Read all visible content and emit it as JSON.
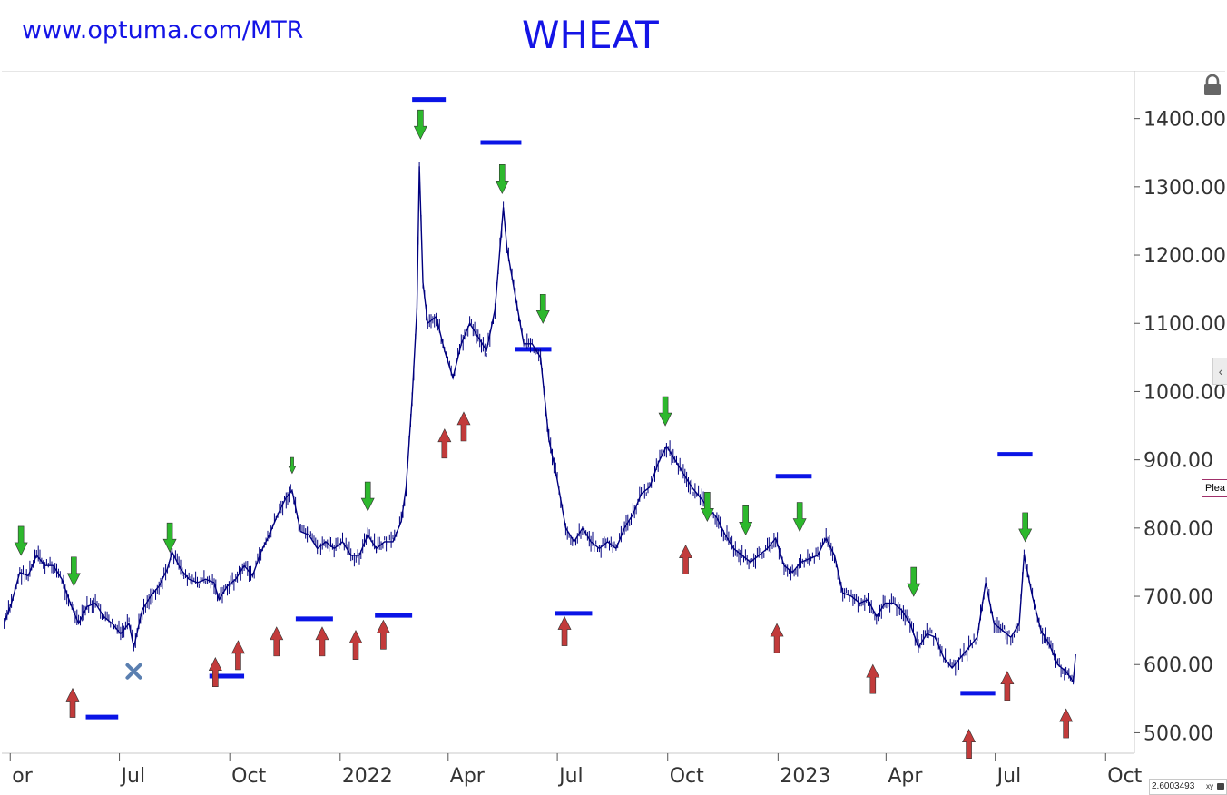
{
  "header": {
    "url": "www.optuma.com/MTR",
    "title": "WHEAT"
  },
  "chart_data": {
    "type": "line",
    "title": "WHEAT",
    "ylim": [
      470,
      1470
    ],
    "y_ticks": [
      "500.00",
      "600.00",
      "700.00",
      "800.00",
      "900.00",
      "1000.00",
      "1100.00",
      "1200.00",
      "1300.00",
      "1400.00"
    ],
    "x_ticks": [
      "or",
      "Jul",
      "Oct",
      "2022",
      "Apr",
      "Jul",
      "Oct",
      "2023",
      "Apr",
      "Jul",
      "Oct"
    ],
    "x_range": [
      "2021-03-25",
      "2023-10-25"
    ],
    "grid": false,
    "series": [
      {
        "color": "#00007f",
        "points": [
          [
            "2021-03-27",
            660
          ],
          [
            "2021-04-02",
            690
          ],
          [
            "2021-04-09",
            735
          ],
          [
            "2021-04-16",
            730
          ],
          [
            "2021-04-23",
            760
          ],
          [
            "2021-04-30",
            745
          ],
          [
            "2021-05-07",
            745
          ],
          [
            "2021-05-14",
            725
          ],
          [
            "2021-05-21",
            690
          ],
          [
            "2021-05-28",
            660
          ],
          [
            "2021-06-04",
            685
          ],
          [
            "2021-06-11",
            690
          ],
          [
            "2021-06-18",
            670
          ],
          [
            "2021-06-25",
            660
          ],
          [
            "2021-07-02",
            645
          ],
          [
            "2021-07-09",
            660
          ],
          [
            "2021-07-13",
            625
          ],
          [
            "2021-07-20",
            680
          ],
          [
            "2021-07-27",
            700
          ],
          [
            "2021-08-03",
            715
          ],
          [
            "2021-08-10",
            740
          ],
          [
            "2021-08-14",
            765
          ],
          [
            "2021-08-21",
            740
          ],
          [
            "2021-08-28",
            725
          ],
          [
            "2021-09-04",
            720
          ],
          [
            "2021-09-11",
            725
          ],
          [
            "2021-09-18",
            720
          ],
          [
            "2021-09-22",
            695
          ],
          [
            "2021-09-29",
            715
          ],
          [
            "2021-10-06",
            725
          ],
          [
            "2021-10-13",
            745
          ],
          [
            "2021-10-20",
            730
          ],
          [
            "2021-10-27",
            765
          ],
          [
            "2021-11-03",
            790
          ],
          [
            "2021-11-10",
            820
          ],
          [
            "2021-11-17",
            845
          ],
          [
            "2021-11-22",
            855
          ],
          [
            "2021-11-29",
            795
          ],
          [
            "2021-12-06",
            790
          ],
          [
            "2021-12-13",
            770
          ],
          [
            "2021-12-20",
            780
          ],
          [
            "2021-12-27",
            770
          ],
          [
            "2022-01-03",
            780
          ],
          [
            "2022-01-10",
            760
          ],
          [
            "2022-01-17",
            760
          ],
          [
            "2022-01-24",
            790
          ],
          [
            "2022-01-31",
            770
          ],
          [
            "2022-02-07",
            780
          ],
          [
            "2022-02-14",
            780
          ],
          [
            "2022-02-21",
            810
          ],
          [
            "2022-02-25",
            860
          ],
          [
            "2022-03-02",
            990
          ],
          [
            "2022-03-06",
            1120
          ],
          [
            "2022-03-08",
            1330
          ],
          [
            "2022-03-11",
            1160
          ],
          [
            "2022-03-15",
            1100
          ],
          [
            "2022-03-22",
            1110
          ],
          [
            "2022-03-29",
            1060
          ],
          [
            "2022-04-05",
            1020
          ],
          [
            "2022-04-12",
            1070
          ],
          [
            "2022-04-19",
            1100
          ],
          [
            "2022-04-26",
            1080
          ],
          [
            "2022-05-03",
            1060
          ],
          [
            "2022-05-10",
            1120
          ],
          [
            "2022-05-17",
            1270
          ],
          [
            "2022-05-20",
            1210
          ],
          [
            "2022-05-27",
            1140
          ],
          [
            "2022-06-03",
            1070
          ],
          [
            "2022-06-10",
            1070
          ],
          [
            "2022-06-17",
            1050
          ],
          [
            "2022-06-24",
            930
          ],
          [
            "2022-07-01",
            870
          ],
          [
            "2022-07-08",
            800
          ],
          [
            "2022-07-15",
            780
          ],
          [
            "2022-07-22",
            800
          ],
          [
            "2022-07-29",
            780
          ],
          [
            "2022-08-05",
            770
          ],
          [
            "2022-08-12",
            780
          ],
          [
            "2022-08-19",
            770
          ],
          [
            "2022-08-26",
            800
          ],
          [
            "2022-09-02",
            820
          ],
          [
            "2022-09-09",
            850
          ],
          [
            "2022-09-16",
            860
          ],
          [
            "2022-09-23",
            895
          ],
          [
            "2022-09-30",
            920
          ],
          [
            "2022-10-07",
            900
          ],
          [
            "2022-10-14",
            880
          ],
          [
            "2022-10-21",
            860
          ],
          [
            "2022-10-28",
            845
          ],
          [
            "2022-11-04",
            830
          ],
          [
            "2022-11-11",
            815
          ],
          [
            "2022-11-18",
            790
          ],
          [
            "2022-11-25",
            770
          ],
          [
            "2022-12-02",
            760
          ],
          [
            "2022-12-09",
            750
          ],
          [
            "2022-12-16",
            760
          ],
          [
            "2022-12-23",
            770
          ],
          [
            "2022-12-30",
            785
          ],
          [
            "2023-01-06",
            745
          ],
          [
            "2023-01-13",
            735
          ],
          [
            "2023-01-20",
            750
          ],
          [
            "2023-01-27",
            755
          ],
          [
            "2023-02-03",
            760
          ],
          [
            "2023-02-10",
            785
          ],
          [
            "2023-02-17",
            760
          ],
          [
            "2023-02-24",
            705
          ],
          [
            "2023-03-03",
            700
          ],
          [
            "2023-03-10",
            690
          ],
          [
            "2023-03-17",
            695
          ],
          [
            "2023-03-24",
            670
          ],
          [
            "2023-03-31",
            690
          ],
          [
            "2023-04-07",
            690
          ],
          [
            "2023-04-14",
            680
          ],
          [
            "2023-04-21",
            660
          ],
          [
            "2023-04-28",
            625
          ],
          [
            "2023-05-05",
            645
          ],
          [
            "2023-05-12",
            640
          ],
          [
            "2023-05-19",
            610
          ],
          [
            "2023-05-26",
            595
          ],
          [
            "2023-06-02",
            610
          ],
          [
            "2023-06-09",
            625
          ],
          [
            "2023-06-16",
            640
          ],
          [
            "2023-06-23",
            720
          ],
          [
            "2023-06-30",
            660
          ],
          [
            "2023-07-07",
            650
          ],
          [
            "2023-07-14",
            640
          ],
          [
            "2023-07-21",
            660
          ],
          [
            "2023-07-25",
            760
          ],
          [
            "2023-08-01",
            700
          ],
          [
            "2023-08-08",
            650
          ],
          [
            "2023-08-15",
            630
          ],
          [
            "2023-08-22",
            600
          ],
          [
            "2023-08-29",
            590
          ],
          [
            "2023-09-04",
            575
          ],
          [
            "2023-09-06",
            615
          ]
        ]
      }
    ],
    "down_arrows": [
      {
        "date": "2021-04-10",
        "value": 760
      },
      {
        "date": "2021-05-24",
        "value": 715
      },
      {
        "date": "2021-08-12",
        "value": 765
      },
      {
        "date": "2021-11-22",
        "value": 880,
        "size": "small"
      },
      {
        "date": "2022-01-24",
        "value": 825
      },
      {
        "date": "2022-03-09",
        "value": 1370
      },
      {
        "date": "2022-05-16",
        "value": 1290
      },
      {
        "date": "2022-06-19",
        "value": 1100
      },
      {
        "date": "2022-09-29",
        "value": 950
      },
      {
        "date": "2022-11-03",
        "value": 810
      },
      {
        "date": "2022-12-05",
        "value": 790
      },
      {
        "date": "2023-01-19",
        "value": 795
      },
      {
        "date": "2023-04-24",
        "value": 700
      },
      {
        "date": "2023-07-26",
        "value": 780
      }
    ],
    "up_arrows": [
      {
        "date": "2021-05-23",
        "value": 565
      },
      {
        "date": "2021-09-19",
        "value": 610
      },
      {
        "date": "2021-10-08",
        "value": 635
      },
      {
        "date": "2021-11-09",
        "value": 655
      },
      {
        "date": "2021-12-17",
        "value": 655
      },
      {
        "date": "2022-01-14",
        "value": 650
      },
      {
        "date": "2022-02-06",
        "value": 665
      },
      {
        "date": "2022-03-29",
        "value": 945
      },
      {
        "date": "2022-04-14",
        "value": 970
      },
      {
        "date": "2022-07-07",
        "value": 670
      },
      {
        "date": "2022-10-16",
        "value": 775
      },
      {
        "date": "2022-12-31",
        "value": 660
      },
      {
        "date": "2023-03-21",
        "value": 600
      },
      {
        "date": "2023-06-09",
        "value": 505
      },
      {
        "date": "2023-07-11",
        "value": 590
      },
      {
        "date": "2023-08-29",
        "value": 535
      }
    ],
    "levels": [
      {
        "start": "2021-06-03",
        "end": "2021-06-30",
        "value": 523
      },
      {
        "start": "2021-09-14",
        "end": "2021-10-13",
        "value": 583
      },
      {
        "start": "2021-11-25",
        "end": "2021-12-26",
        "value": 667
      },
      {
        "start": "2022-01-30",
        "end": "2022-03-02",
        "value": 672
      },
      {
        "start": "2022-03-02",
        "end": "2022-03-30",
        "value": 1428
      },
      {
        "start": "2022-04-28",
        "end": "2022-06-01",
        "value": 1365
      },
      {
        "start": "2022-05-27",
        "end": "2022-06-26",
        "value": 1062
      },
      {
        "start": "2022-06-29",
        "end": "2022-07-30",
        "value": 675
      },
      {
        "start": "2022-12-30",
        "end": "2023-01-29",
        "value": 876
      },
      {
        "start": "2023-06-02",
        "end": "2023-07-01",
        "value": 558
      },
      {
        "start": "2023-07-03",
        "end": "2023-08-01",
        "value": 908
      }
    ],
    "cross_marker": {
      "date": "2021-07-13",
      "value": 590
    }
  },
  "readout": {
    "value": "2.6003493",
    "xy_label": "xy"
  },
  "tooltip_text": "Plea",
  "colors": {
    "price": "#00007f",
    "level": "#0a14e6",
    "down_arrow": "#2db82d",
    "up_arrow": "#c23b3b",
    "cross": "#5a7fb0",
    "text": "#1414e6"
  },
  "icons": [
    "lock-icon",
    "collapse-arrow-icon",
    "cross-marker-icon"
  ]
}
